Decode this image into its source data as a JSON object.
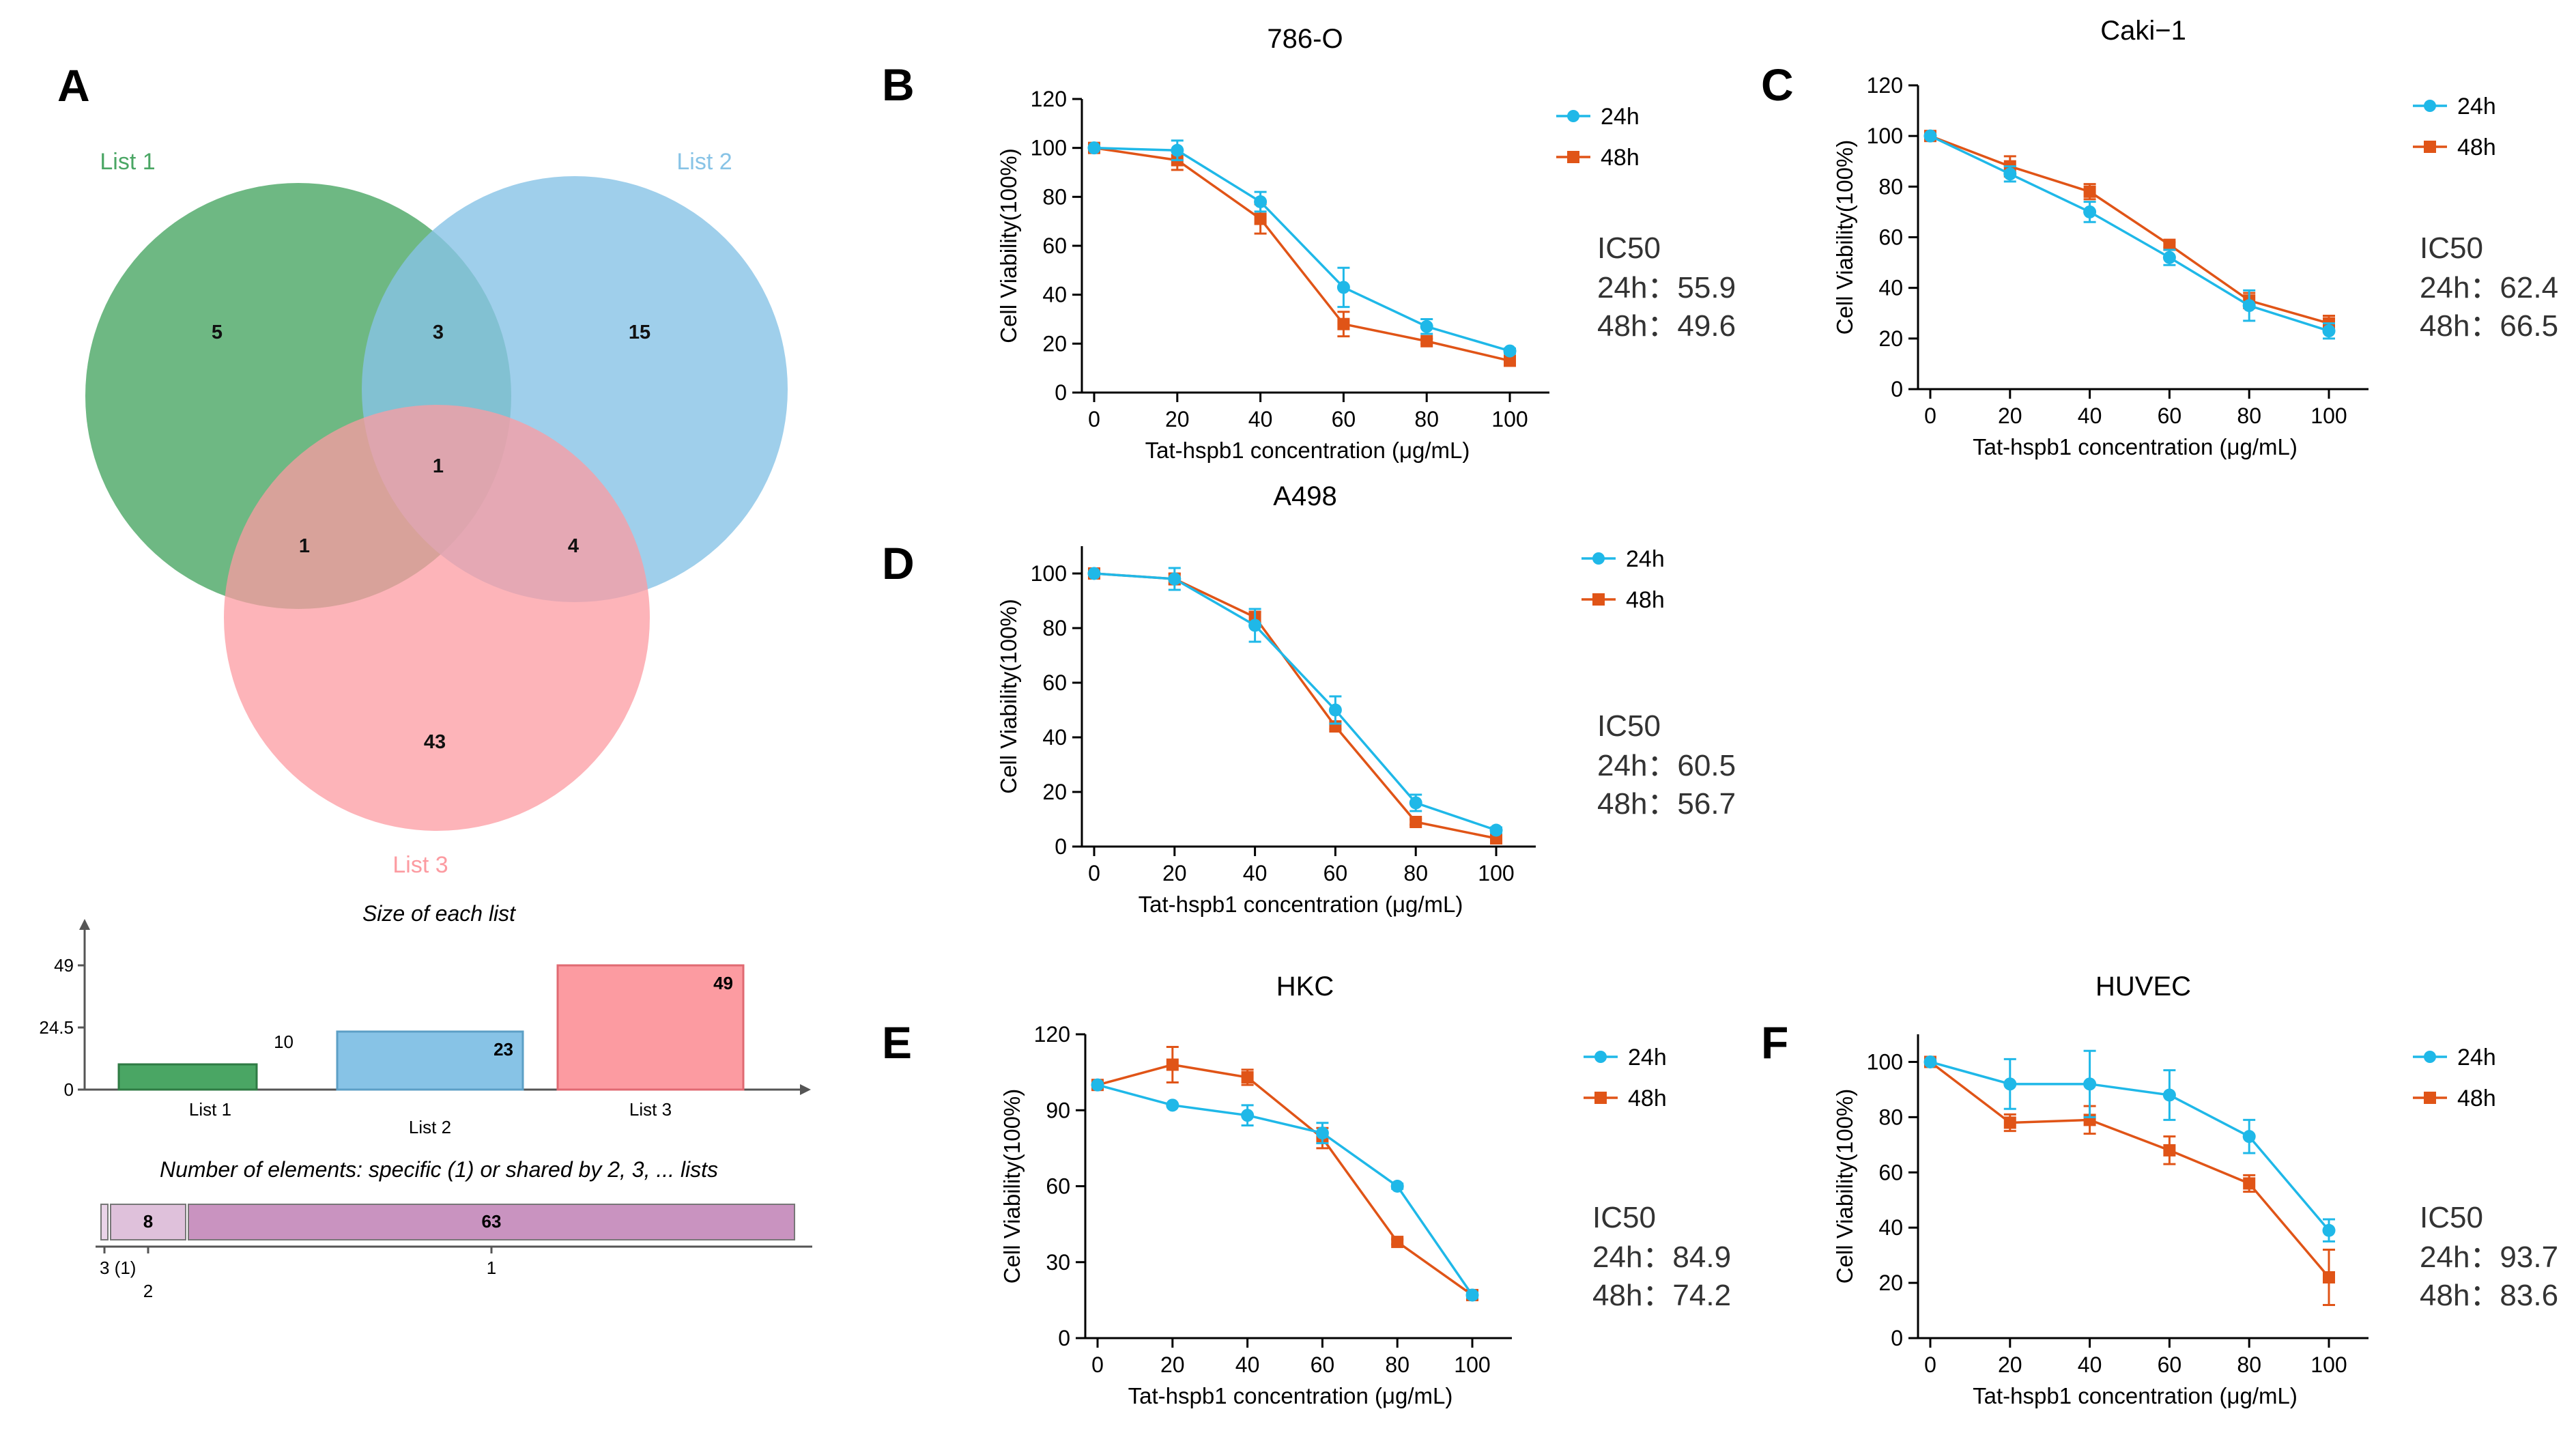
{
  "panel_labels": [
    "A",
    "B",
    "C",
    "D",
    "E",
    "F"
  ],
  "colors": {
    "s24": "#1fb8e8",
    "s48": "#e05417",
    "list1": "#4aa664",
    "list2": "#87c3e6",
    "list3": "#fc9ba1",
    "combo": "#c993c0"
  },
  "venn": {
    "list_names": [
      "List 1",
      "List 2",
      "List 3"
    ],
    "regions": {
      "only1": "5",
      "l1l2": "3",
      "only2": "15",
      "all": "1",
      "l1l3": "1",
      "l2l3": "4",
      "only3": "43"
    }
  },
  "sizes": {
    "title": "Size of each list",
    "ticks": [
      "49",
      "24.5",
      "0"
    ],
    "bars": [
      {
        "name": "List 1",
        "value": 10
      },
      {
        "name": "List 2",
        "value": 23
      },
      {
        "name": "List 3",
        "value": 49
      }
    ],
    "value_labels": [
      "10",
      "23",
      "49"
    ]
  },
  "overlap": {
    "title": "Number of elements: specific (1) or shared by 2, 3, ... lists",
    "segments": [
      {
        "key": "3",
        "value": 1,
        "label": ""
      },
      {
        "key": "2",
        "value": 8,
        "label": "8"
      },
      {
        "key": "1",
        "value": 63,
        "label": "63"
      }
    ],
    "axis_labels": {
      "three": "3 (1)",
      "two": "2",
      "one": "1"
    }
  },
  "chart_data": [
    {
      "panel": "B",
      "type": "line",
      "title": "786-O",
      "xlabel": "Tat-hspb1 concentration (μg/mL)",
      "ylabel": "Cell Viability(100%)",
      "x": [
        0,
        20,
        40,
        60,
        80,
        100
      ],
      "xticks": [
        0,
        20,
        40,
        60,
        80,
        100
      ],
      "ylim": [
        0,
        120
      ],
      "yticks": [
        0,
        20,
        40,
        60,
        80,
        100,
        120
      ],
      "series": [
        {
          "name": "24h",
          "values": [
            100,
            99,
            78,
            43,
            27,
            17
          ],
          "errors": [
            0,
            4,
            4,
            8,
            3,
            1
          ]
        },
        {
          "name": "48h",
          "values": [
            100,
            95,
            71,
            28,
            21,
            13
          ],
          "errors": [
            0,
            4,
            6,
            5,
            1,
            1
          ]
        }
      ],
      "ic50_title": "IC50",
      "ic50_lines": [
        "24h：55.9",
        "48h：49.6"
      ]
    },
    {
      "panel": "C",
      "type": "line",
      "title": "Caki−1",
      "xlabel": "Tat-hspb1 concentration (μg/mL)",
      "ylabel": "Cell Viability(100%)",
      "x": [
        0,
        20,
        40,
        60,
        80,
        100
      ],
      "xticks": [
        0,
        20,
        40,
        60,
        80,
        100
      ],
      "ylim": [
        0,
        120
      ],
      "yticks": [
        0,
        20,
        40,
        60,
        80,
        100,
        120
      ],
      "series": [
        {
          "name": "24h",
          "values": [
            100,
            85,
            70,
            52,
            33,
            23
          ],
          "errors": [
            0,
            3,
            4,
            3,
            6,
            3
          ]
        },
        {
          "name": "48h",
          "values": [
            100,
            88,
            78,
            57,
            35,
            26
          ],
          "errors": [
            0,
            4,
            3,
            1,
            3,
            3
          ]
        }
      ],
      "ic50_title": "IC50",
      "ic50_lines": [
        "24h：62.4",
        "48h：66.5"
      ]
    },
    {
      "panel": "D",
      "type": "line",
      "title": "A498",
      "xlabel": "Tat-hspb1 concentration (μg/mL)",
      "ylabel": "Cell Viability(100%)",
      "x": [
        0,
        20,
        40,
        60,
        80,
        100
      ],
      "xticks": [
        0,
        20,
        40,
        60,
        80,
        100
      ],
      "ylim": [
        0,
        110
      ],
      "yticks": [
        0,
        20,
        40,
        60,
        80,
        100
      ],
      "series": [
        {
          "name": "24h",
          "values": [
            100,
            98,
            81,
            50,
            16,
            6
          ],
          "errors": [
            0,
            4,
            6,
            5,
            3,
            1
          ]
        },
        {
          "name": "48h",
          "values": [
            100,
            98,
            84,
            44,
            9,
            3
          ],
          "errors": [
            0,
            2,
            2,
            1,
            1,
            1
          ]
        }
      ],
      "ic50_title": "IC50",
      "ic50_lines": [
        "24h：60.5",
        "48h：56.7"
      ]
    },
    {
      "panel": "E",
      "type": "line",
      "title": "HKC",
      "xlabel": "Tat-hspb1 concentration (μg/mL)",
      "ylabel": "Cell Viability(100%)",
      "x": [
        0,
        20,
        40,
        60,
        80,
        100
      ],
      "xticks": [
        0,
        20,
        40,
        60,
        80,
        100
      ],
      "ylim": [
        0,
        120
      ],
      "yticks": [
        0,
        30,
        60,
        90,
        120
      ],
      "series": [
        {
          "name": "24h",
          "values": [
            100,
            92,
            88,
            81,
            60,
            17
          ],
          "errors": [
            0,
            0,
            4,
            4,
            1,
            1
          ]
        },
        {
          "name": "48h",
          "values": [
            100,
            108,
            103,
            79,
            38,
            17
          ],
          "errors": [
            0,
            7,
            3,
            4,
            1,
            1
          ]
        }
      ],
      "ic50_title": "IC50",
      "ic50_lines": [
        "24h：84.9",
        "48h：74.2"
      ]
    },
    {
      "panel": "F",
      "type": "line",
      "title": "HUVEC",
      "xlabel": "Tat-hspb1 concentration (μg/mL)",
      "ylabel": "Cell Viability(100%)",
      "x": [
        0,
        20,
        40,
        60,
        80,
        100
      ],
      "xticks": [
        0,
        20,
        40,
        60,
        80,
        100
      ],
      "ylim": [
        0,
        110
      ],
      "yticks": [
        0,
        20,
        40,
        60,
        80,
        100
      ],
      "series": [
        {
          "name": "24h",
          "values": [
            100,
            92,
            92,
            88,
            73,
            39
          ],
          "errors": [
            0,
            9,
            12,
            9,
            6,
            4
          ]
        },
        {
          "name": "48h",
          "values": [
            100,
            78,
            79,
            68,
            56,
            22
          ],
          "errors": [
            0,
            3,
            5,
            5,
            3,
            10
          ]
        }
      ],
      "ic50_title": "IC50",
      "ic50_lines": [
        "24h：93.7",
        "48h：83.6"
      ]
    }
  ]
}
